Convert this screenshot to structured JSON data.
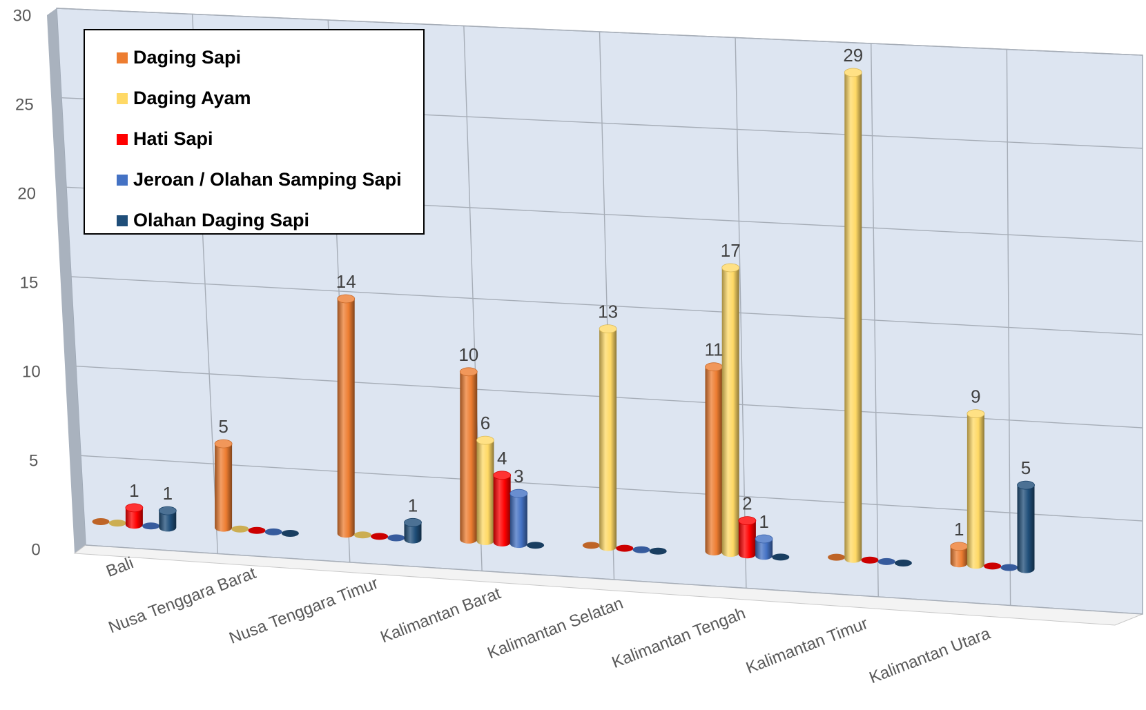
{
  "chart_data": {
    "type": "bar",
    "title": "",
    "xlabel": "",
    "ylabel": "",
    "ylim": [
      0,
      30
    ],
    "yticks": [
      0,
      5,
      10,
      15,
      20,
      25,
      30
    ],
    "grid": true,
    "legend_position": "top-left",
    "categories": [
      "Bali",
      "Nusa Tenggara Barat",
      "Nusa Tenggara Timur",
      "Kalimantan Barat",
      "Kalimantan Selatan",
      "Kalimantan Tengah",
      "Kalimantan Timur",
      "Kalimantan Utara"
    ],
    "series": [
      {
        "name": "Daging Sapi",
        "color": "#ED7D31",
        "values": [
          0,
          5,
          14,
          10,
          0,
          11,
          0,
          1
        ]
      },
      {
        "name": "Daging Ayam",
        "color": "#FFD966",
        "values": [
          0,
          0,
          0,
          6,
          13,
          17,
          29,
          9
        ]
      },
      {
        "name": "Hati Sapi",
        "color": "#FF0000",
        "values": [
          1,
          0,
          0,
          4,
          0,
          2,
          0,
          0
        ]
      },
      {
        "name": "Jeroan / Olahan Samping Sapi",
        "color": "#4472C4",
        "values": [
          0,
          0,
          0,
          3,
          0,
          1,
          0,
          0
        ]
      },
      {
        "name": "Olahan Daging Sapi",
        "color": "#1F4E79",
        "values": [
          1,
          0,
          1,
          0,
          0,
          0,
          0,
          5
        ]
      }
    ]
  }
}
